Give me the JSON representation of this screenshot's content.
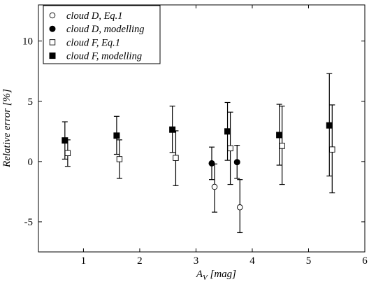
{
  "chart_data": {
    "type": "scatter",
    "xlabel": "A_V [mag]",
    "xlabel_main": "A",
    "xlabel_sub": "V",
    "xlabel_unit": " [mag]",
    "ylabel": "Relative error [%]",
    "xlim": [
      0.2,
      6.0
    ],
    "ylim": [
      -7.5,
      13.0
    ],
    "xticks": [
      1,
      2,
      3,
      4,
      5,
      6
    ],
    "yticks": [
      -5,
      0,
      5,
      10
    ],
    "grid": false,
    "legend_position": "top-left",
    "series": [
      {
        "name": "cloud D, Eq.1",
        "marker": "circle-open",
        "points": [
          {
            "x": 3.33,
            "y": -2.1,
            "lo": -4.2,
            "hi": -0.2
          },
          {
            "x": 3.78,
            "y": -3.8,
            "lo": -5.9,
            "hi": -1.5
          }
        ]
      },
      {
        "name": "cloud D, modelling",
        "marker": "circle-filled",
        "points": [
          {
            "x": 3.28,
            "y": -0.15,
            "lo": -1.5,
            "hi": 1.2
          },
          {
            "x": 3.73,
            "y": -0.05,
            "lo": -1.4,
            "hi": 1.35
          }
        ]
      },
      {
        "name": "cloud F, Eq.1",
        "marker": "square-open",
        "points": [
          {
            "x": 0.72,
            "y": 0.7,
            "lo": -0.4,
            "hi": 1.8
          },
          {
            "x": 1.64,
            "y": 0.2,
            "lo": -1.4,
            "hi": 1.8
          },
          {
            "x": 2.64,
            "y": 0.3,
            "lo": -2.0,
            "hi": 2.55
          },
          {
            "x": 3.61,
            "y": 1.1,
            "lo": -1.9,
            "hi": 4.1
          },
          {
            "x": 4.53,
            "y": 1.3,
            "lo": -1.9,
            "hi": 4.6
          },
          {
            "x": 5.42,
            "y": 1.0,
            "lo": -2.6,
            "hi": 4.7
          }
        ]
      },
      {
        "name": "cloud F, modelling",
        "marker": "square-filled",
        "points": [
          {
            "x": 0.67,
            "y": 1.75,
            "lo": 0.2,
            "hi": 3.3
          },
          {
            "x": 1.59,
            "y": 2.15,
            "lo": 0.6,
            "hi": 3.75
          },
          {
            "x": 2.58,
            "y": 2.65,
            "lo": 0.75,
            "hi": 4.6
          },
          {
            "x": 3.56,
            "y": 2.5,
            "lo": 0.1,
            "hi": 4.9
          },
          {
            "x": 4.48,
            "y": 2.2,
            "lo": -0.3,
            "hi": 4.75
          },
          {
            "x": 5.37,
            "y": 3.0,
            "lo": -1.2,
            "hi": 7.3
          }
        ]
      }
    ],
    "legend": {
      "entries": [
        {
          "series": 0,
          "label_prefix": "cloud D",
          "label_suffix": ",  Eq.1"
        },
        {
          "series": 1,
          "label_prefix": "cloud D",
          "label_suffix": ",  modelling"
        },
        {
          "series": 2,
          "label_prefix": "cloud F",
          "label_suffix": ",  Eq.1"
        },
        {
          "series": 3,
          "label_prefix": "cloud F",
          "label_suffix": ",  modelling"
        }
      ]
    }
  }
}
